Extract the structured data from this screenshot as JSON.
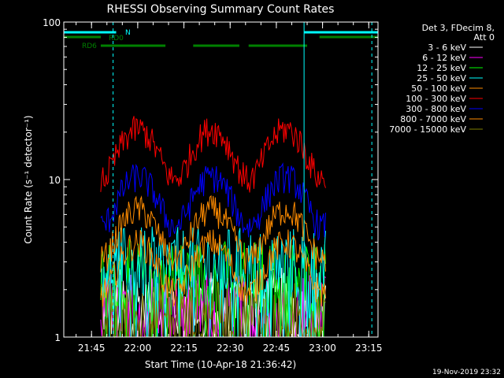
{
  "chart_data": {
    "type": "line",
    "title": "RHESSI Observing Summary Count Rates",
    "xlabel": "Start Time (10-Apr-18 21:36:42)",
    "ylabel": "Count Rate (s⁻¹ detector⁻¹)",
    "y_scale": "log",
    "ylim": [
      1,
      100
    ],
    "xlim": [
      "21:36",
      "23:18"
    ],
    "x_ticks": [
      "21:45",
      "22:00",
      "22:15",
      "22:30",
      "22:45",
      "23:00",
      "23:15"
    ],
    "y_ticks": [
      "1",
      "10",
      "100"
    ],
    "data_x_range": [
      "21:48",
      "23:01"
    ],
    "legend_header": [
      "Det 3, FDecim 8,",
      "Att 0"
    ],
    "timestamp": "19-Nov-2019 23:32",
    "flags": [
      {
        "name": "N",
        "color": "#00ffff",
        "intervals": [
          [
            "21:36",
            "21:53"
          ],
          [
            "22:54",
            "23:18"
          ]
        ]
      },
      {
        "name": "RD0",
        "color": "#008000",
        "intervals": [
          [
            "21:36",
            "21:48"
          ],
          [
            "22:59",
            "23:18"
          ]
        ]
      },
      {
        "name": "RD6",
        "color": "#008000",
        "intervals": [
          [
            "21:48",
            "22:09"
          ],
          [
            "22:18",
            "22:33"
          ],
          [
            "22:36",
            "22:55"
          ]
        ]
      }
    ],
    "markers": {
      "solid": [
        "21:36",
        "22:54"
      ],
      "dashed": [
        "21:52",
        "23:16"
      ]
    },
    "series": [
      {
        "name": "3 - 6 keV",
        "color": "#ffffff",
        "base": 1.6,
        "profile": "noise"
      },
      {
        "name": "6 - 12 keV",
        "color": "#ff00ff",
        "base": 1.5,
        "profile": "noise"
      },
      {
        "name": "12 - 25 keV",
        "color": "#00ff00",
        "base": 2.4,
        "profile": "noise"
      },
      {
        "name": "25 - 50 keV",
        "color": "#00ffff",
        "base": 2.9,
        "profile": "noise"
      },
      {
        "name": "50 - 100 keV",
        "color": "#ff8c00",
        "base": 4.0,
        "profile": "orbit"
      },
      {
        "name": "100 - 300 keV",
        "color": "#ff0000",
        "base": 21,
        "profile": "orbit"
      },
      {
        "name": "300 - 800 keV",
        "color": "#0000ff",
        "base": 10.5,
        "profile": "orbit"
      },
      {
        "name": "800 - 7000 keV",
        "color": "#ff8c00",
        "base": 6.5,
        "profile": "orbit"
      },
      {
        "name": "7000 - 15000 keV",
        "color": "#808000",
        "base": 1.3,
        "profile": "noise"
      }
    ]
  }
}
